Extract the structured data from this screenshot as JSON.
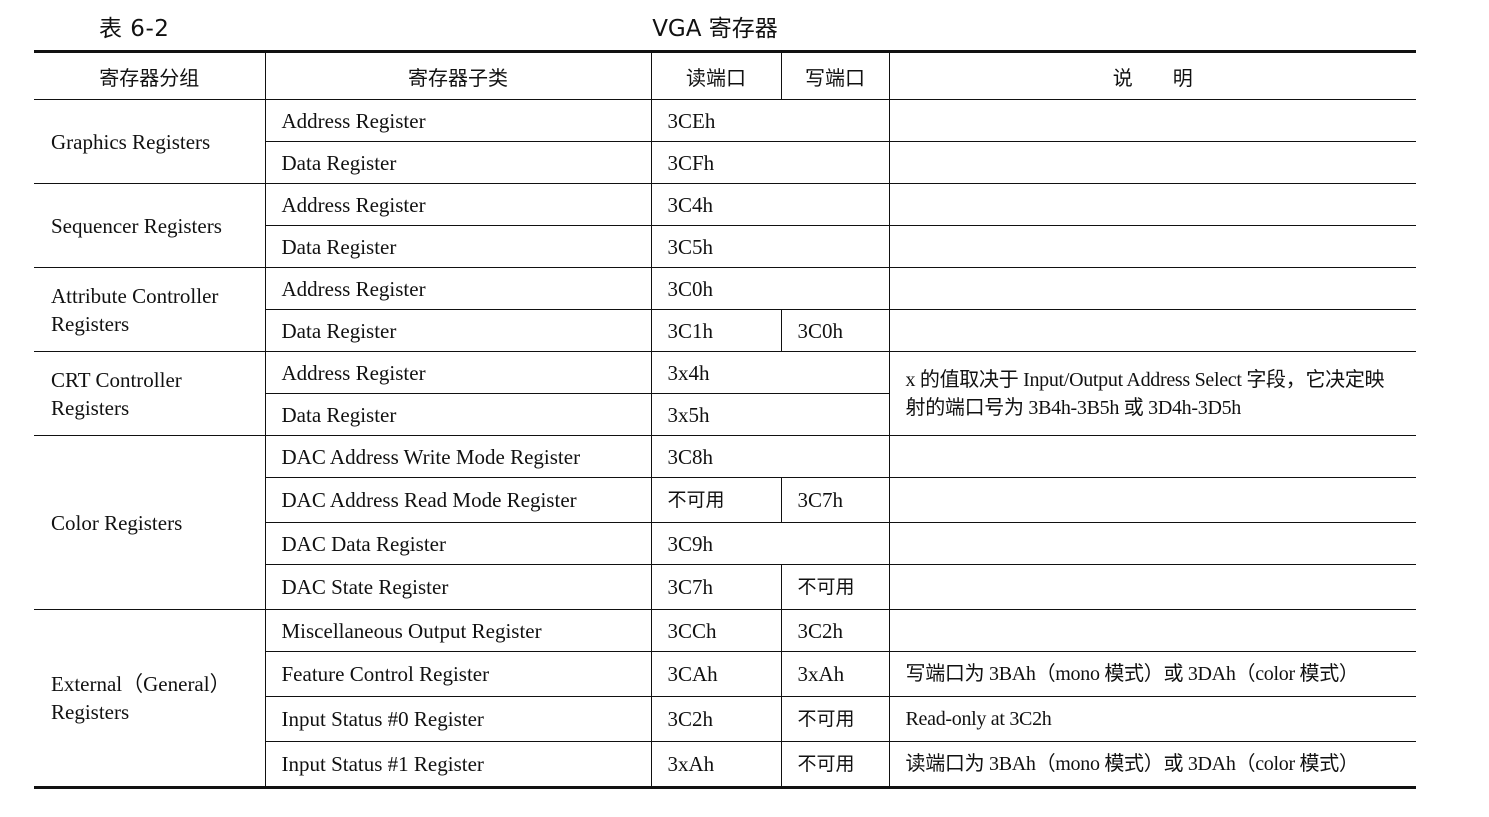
{
  "caption": {
    "number": "表 6-2",
    "title": "VGA 寄存器"
  },
  "headers": {
    "group": "寄存器分组",
    "subtype": "寄存器子类",
    "read_port": "读端口",
    "write_port": "写端口",
    "description": "说明"
  },
  "groups": {
    "graphics": "Graphics Registers",
    "sequencer": "Sequencer Registers",
    "attribute": "Attribute Controller Registers",
    "crt": "CRT Controller Registers",
    "color": "Color Registers",
    "external": "External（General） Registers"
  },
  "rows": [
    {
      "subtype": "Address Register",
      "read": "3CEh",
      "write": "",
      "desc": ""
    },
    {
      "subtype": "Data Register",
      "read": "3CFh",
      "write": "",
      "desc": ""
    },
    {
      "subtype": "Address Register",
      "read": "3C4h",
      "write": "",
      "desc": ""
    },
    {
      "subtype": "Data Register",
      "read": "3C5h",
      "write": "",
      "desc": ""
    },
    {
      "subtype": "Address Register",
      "read": "3C0h",
      "write": "",
      "desc": ""
    },
    {
      "subtype": "Data Register",
      "read": "3C1h",
      "write": "3C0h",
      "desc": ""
    },
    {
      "subtype": "Address Register",
      "read": "3x4h",
      "write": "",
      "desc": "x 的值取决于 Input/Output Address Select 字段，它决定映射的端口号为 3B4h-3B5h 或 3D4h-3D5h"
    },
    {
      "subtype": "Data Register",
      "read": "3x5h",
      "write": "",
      "desc": ""
    },
    {
      "subtype": "DAC Address Write Mode Register",
      "read": "3C8h",
      "write": "",
      "desc": ""
    },
    {
      "subtype": "DAC Address Read Mode Register",
      "read": "不可用",
      "write": "3C7h",
      "desc": ""
    },
    {
      "subtype": "DAC Data Register",
      "read": "3C9h",
      "write": "",
      "desc": ""
    },
    {
      "subtype": "DAC State Register",
      "read": "3C7h",
      "write": "不可用",
      "desc": ""
    },
    {
      "subtype": "Miscellaneous Output Register",
      "read": "3CCh",
      "write": "3C2h",
      "desc": ""
    },
    {
      "subtype": "Feature Control Register",
      "read": "3CAh",
      "write": "3xAh",
      "desc": "写端口为 3BAh（mono 模式）或 3DAh（color 模式）"
    },
    {
      "subtype": "Input Status #0 Register",
      "read": "3C2h",
      "write": "不可用",
      "desc": "Read-only at 3C2h"
    },
    {
      "subtype": "Input Status #1 Register",
      "read": "3xAh",
      "write": "不可用",
      "desc": "读端口为 3BAh（mono 模式）或 3DAh（color 模式）"
    }
  ]
}
